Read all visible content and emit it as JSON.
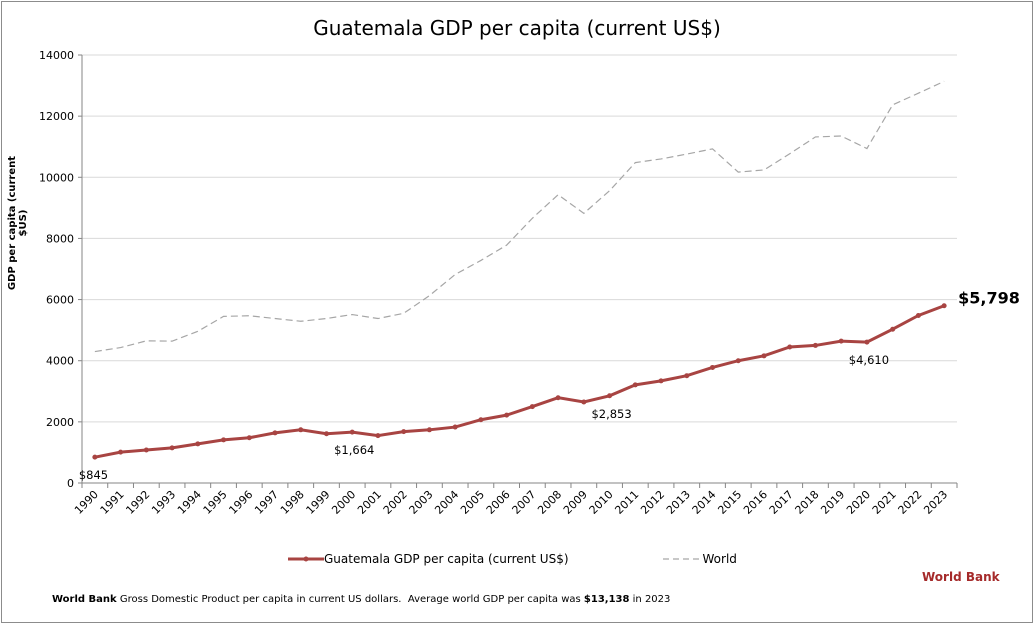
{
  "chart_data": {
    "type": "line",
    "title": "Guatemala GDP per capita (current US$)",
    "ylabel": "GDP per capita (current $US)",
    "xlabel": "",
    "ylim": [
      0,
      14000
    ],
    "yticks": [
      0,
      2000,
      4000,
      6000,
      8000,
      10000,
      12000,
      14000
    ],
    "grid": true,
    "legend": "bottom",
    "categories": [
      "1990",
      "1991",
      "1992",
      "1993",
      "1994",
      "1995",
      "1996",
      "1997",
      "1998",
      "1999",
      "2000",
      "2001",
      "2002",
      "2003",
      "2004",
      "2005",
      "2006",
      "2007",
      "2008",
      "2009",
      "2010",
      "2011",
      "2012",
      "2013",
      "2014",
      "2015",
      "2016",
      "2017",
      "2018",
      "2019",
      "2020",
      "2021",
      "2022",
      "2023"
    ],
    "series": [
      {
        "name": "Guatemala GDP per capita (current US$)",
        "color": "#a84442",
        "style": "solid-markers",
        "values": [
          845,
          1010,
          1080,
          1150,
          1280,
          1410,
          1480,
          1640,
          1740,
          1610,
          1664,
          1550,
          1680,
          1740,
          1830,
          2070,
          2220,
          2500,
          2790,
          2650,
          2853,
          3210,
          3340,
          3510,
          3780,
          4000,
          4160,
          4450,
          4500,
          4640,
          4610,
          5030,
          5480,
          5798
        ]
      },
      {
        "name": "World",
        "color": "#a6a6a6",
        "style": "dashed",
        "values": [
          4300,
          4430,
          4650,
          4640,
          4960,
          5450,
          5470,
          5380,
          5290,
          5380,
          5510,
          5380,
          5550,
          6130,
          6820,
          7280,
          7780,
          8660,
          9430,
          8820,
          9560,
          10480,
          10600,
          10760,
          10930,
          10170,
          10240,
          10770,
          11320,
          11350,
          10940,
          12370,
          12750,
          13138
        ]
      }
    ],
    "annotations": [
      {
        "year": "1990",
        "text": "$845"
      },
      {
        "year": "2000",
        "text": "$1,664"
      },
      {
        "year": "2010",
        "text": "$2,853"
      },
      {
        "year": "2020",
        "text": "$4,610"
      },
      {
        "year": "2023",
        "text": "$5,798"
      }
    ]
  },
  "source_label": "World Bank",
  "footer": {
    "bold_lead": "World Bank",
    "text": " Gross Domestic Product per capita in current US dollars.  Average world GDP per capita was ",
    "bold_value": "$13,138",
    "tail": " in 2023"
  }
}
